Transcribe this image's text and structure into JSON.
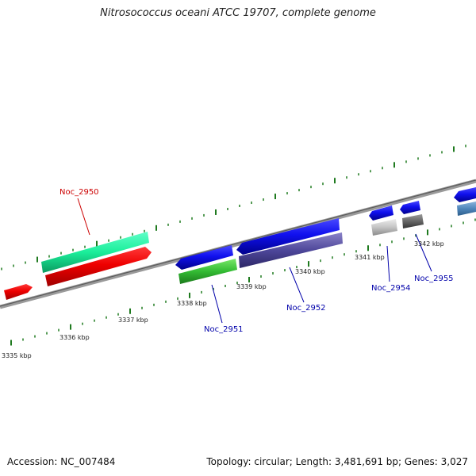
{
  "title": "Nitrosococcus oceani ATCC 19707, complete genome",
  "footer": {
    "accession": "Accession: NC_007484",
    "summary": "Topology: circular; Length: 3,481,691 bp; Genes: 3,027"
  },
  "colors": {
    "backbone": "#7a7a7a",
    "tick": "#1f7a1f",
    "label_red": "#cc0000",
    "label_blue": "#0000aa"
  },
  "kbp_labels": [
    "3335 kbp",
    "3336 kbp",
    "3337 kbp",
    "3338 kbp",
    "3339 kbp",
    "3340 kbp",
    "3341 kbp",
    "3342 kbp"
  ],
  "gene_labels": {
    "noc_2950": "Noc_2950",
    "noc_2951": "Noc_2951",
    "noc_2952": "Noc_2952",
    "noc_2954": "Noc_2954",
    "noc_2955": "Noc_2955"
  }
}
